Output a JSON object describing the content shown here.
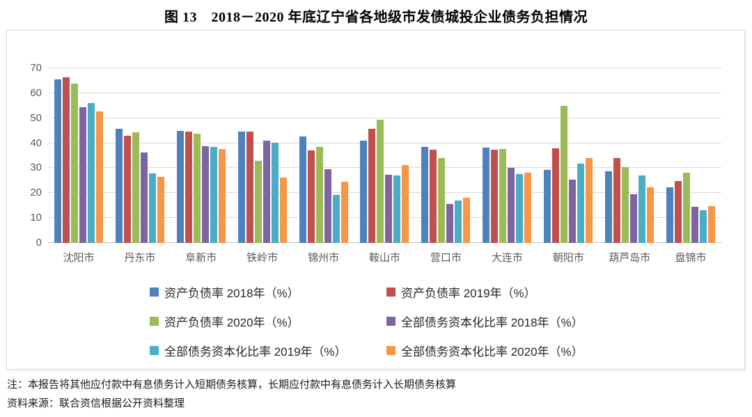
{
  "page": {
    "title": "图 13　2018－2020 年底辽宁省各地级市发债城投企业债务负担情况",
    "note_line1": "注：本报告将其他应付款中有息债务计入短期债务核算，长期应付款中有息债务计入长期债务核算",
    "note_line2": "资料来源：联合资信根据公开资料整理"
  },
  "colors": {
    "gridline": "#d9d9d9",
    "zero_axis": "#c0c0c0",
    "axis_text": "#595959",
    "chart_border": "#d9d9d9"
  },
  "chart_data": {
    "type": "bar",
    "title": "图 13　2018－2020 年底辽宁省各地级市发债城投企业债务负担情况",
    "categories": [
      "沈阳市",
      "丹东市",
      "阜新市",
      "铁岭市",
      "锦州市",
      "鞍山市",
      "营口市",
      "大连市",
      "朝阳市",
      "葫芦岛市",
      "盘锦市"
    ],
    "series": [
      {
        "name": "资产负债率 2018年（%）",
        "color": "#4F81BD",
        "values": [
          65.5,
          45.8,
          44.8,
          44.6,
          42.8,
          41.0,
          38.5,
          38.1,
          29.4,
          28.7,
          22.3
        ]
      },
      {
        "name": "资产负债率 2019年（%）",
        "color": "#C0504D",
        "values": [
          66.5,
          42.9,
          44.6,
          44.6,
          37.2,
          45.8,
          37.3,
          37.5,
          38.0,
          34.0,
          24.8
        ]
      },
      {
        "name": "资产负债率 2020年（%）",
        "color": "#9BBB59",
        "values": [
          63.8,
          44.3,
          43.8,
          32.8,
          38.5,
          49.5,
          34.1,
          37.8,
          55.0,
          30.5,
          28.1
        ]
      },
      {
        "name": "全部债务资本化比率 2018年（%）",
        "color": "#8064A2",
        "values": [
          54.5,
          36.2,
          38.9,
          40.9,
          29.6,
          27.4,
          15.6,
          30.1,
          25.4,
          19.4,
          14.4
        ]
      },
      {
        "name": "全部债务资本化比率 2019年（%）",
        "color": "#4BACC6",
        "values": [
          56.0,
          27.8,
          38.5,
          40.2,
          19.3,
          27.1,
          16.9,
          27.7,
          31.9,
          27.1,
          13.0
        ]
      },
      {
        "name": "全部债务资本化比率 2020年（%）",
        "color": "#F79646",
        "values": [
          52.8,
          26.4,
          37.8,
          26.1,
          24.5,
          31.3,
          18.1,
          28.3,
          33.9,
          22.3,
          14.7
        ]
      }
    ],
    "ylim": [
      0,
      70
    ],
    "yticks": [
      0,
      10,
      20,
      30,
      40,
      50,
      60,
      70
    ],
    "xlabel": "",
    "ylabel": "",
    "grid": true,
    "legend_position": "bottom"
  }
}
